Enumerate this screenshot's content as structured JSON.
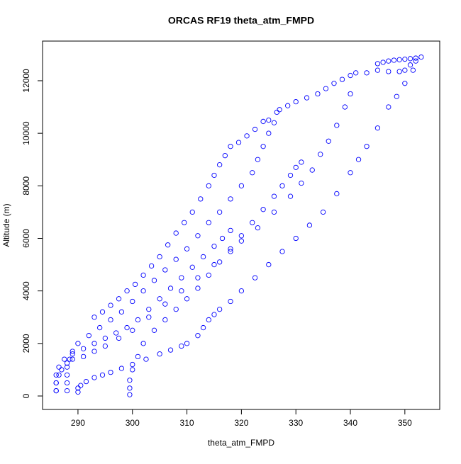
{
  "chart_data": {
    "type": "scatter",
    "title": "ORCAS RF19 theta_atm_FMPD",
    "x_label": "theta_atm_FMPD",
    "y_label": "Altitude (m)",
    "xlim": [
      283.5,
      356.4
    ],
    "ylim": [
      -512,
      13509
    ],
    "xticks": [
      290,
      300,
      310,
      320,
      330,
      340,
      350
    ],
    "yticks": [
      0,
      2000,
      4000,
      6000,
      8000,
      10000,
      12000
    ],
    "series": [
      {
        "color": "#0000ff",
        "x": [
          293,
          294.5,
          296,
          297.5,
          299,
          300.5,
          302,
          303.5,
          305,
          306.5,
          308,
          309.5,
          311,
          312.5,
          314,
          315,
          316,
          317,
          318,
          319.5,
          321,
          322.5,
          324,
          325,
          327,
          328.5,
          330,
          332,
          334,
          335.5,
          337,
          338.5,
          340,
          343,
          345,
          347,
          349,
          350,
          351,
          352,
          353,
          326.5,
          326,
          325,
          324,
          323,
          322,
          320,
          318,
          316,
          314,
          312,
          310,
          308,
          306,
          304,
          302,
          300,
          298,
          296,
          294,
          292,
          290,
          289,
          288.5,
          288,
          288,
          288,
          288,
          351.5,
          350,
          348.5,
          347,
          345,
          343,
          341.5,
          340,
          337.5,
          335,
          332.5,
          330,
          327.5,
          325,
          322.5,
          320,
          318,
          316,
          315,
          314,
          313,
          312,
          310,
          309,
          307,
          305,
          302.5,
          300,
          298,
          296,
          294.5,
          293,
          291.5,
          290.5,
          290,
          290,
          341,
          340,
          339,
          337.5,
          336,
          334.5,
          333,
          331,
          329,
          326,
          323,
          320,
          318,
          315,
          312,
          309,
          306,
          303,
          300,
          297.5,
          295,
          293,
          291,
          289,
          288,
          287,
          286.5,
          286,
          286,
          331,
          330,
          329,
          327.5,
          326,
          324,
          322,
          320,
          318,
          316,
          314,
          312,
          310,
          308,
          306,
          304,
          302,
          301,
          300,
          299.5,
          299.5,
          299.5,
          318,
          316.5,
          315,
          313,
          311,
          309,
          307,
          305,
          303,
          301,
          299,
          297,
          295,
          293,
          291,
          289,
          287.5,
          286.5,
          286,
          286,
          286,
          345,
          346,
          347,
          348,
          349,
          350,
          351,
          352
        ],
        "values": [
          3000,
          3200,
          3450,
          3700,
          4000,
          4250,
          4600,
          4950,
          5300,
          5750,
          6200,
          6600,
          7000,
          7500,
          8000,
          8400,
          8800,
          9150,
          9500,
          9650,
          9900,
          10150,
          10450,
          10500,
          10900,
          11050,
          11200,
          11350,
          11500,
          11700,
          11900,
          12050,
          12200,
          12300,
          12400,
          12350,
          12350,
          12400,
          12600,
          12750,
          12900,
          10800,
          10400,
          10000,
          9500,
          9000,
          8500,
          8000,
          7500,
          7000,
          6600,
          6100,
          5600,
          5200,
          4800,
          4400,
          4000,
          3600,
          3200,
          2900,
          2600,
          2300,
          2000,
          1700,
          1400,
          1100,
          800,
          500,
          200,
          12400,
          11900,
          11400,
          11000,
          10200,
          9500,
          9000,
          8500,
          7700,
          7000,
          6500,
          6000,
          5500,
          5000,
          4500,
          4000,
          3600,
          3300,
          3100,
          2900,
          2600,
          2300,
          2000,
          1900,
          1750,
          1600,
          1400,
          1200,
          1050,
          900,
          800,
          700,
          550,
          400,
          300,
          150,
          12300,
          11500,
          11000,
          10300,
          9700,
          9200,
          8600,
          8100,
          7600,
          7000,
          6400,
          5900,
          5500,
          5000,
          4500,
          4000,
          3500,
          3000,
          2500,
          2200,
          1900,
          1700,
          1500,
          1400,
          1250,
          1000,
          800,
          500,
          200,
          8900,
          8700,
          8400,
          8000,
          7600,
          7100,
          6600,
          6100,
          5600,
          5100,
          4600,
          4100,
          3700,
          3300,
          2900,
          2500,
          2000,
          1500,
          1000,
          600,
          300,
          50,
          6300,
          6000,
          5700,
          5300,
          4900,
          4500,
          4100,
          3700,
          3300,
          2900,
          2600,
          2400,
          2200,
          2000,
          1800,
          1600,
          1400,
          1100,
          800,
          500,
          200,
          12650,
          12700,
          12750,
          12780,
          12800,
          12820,
          12840,
          12860
        ]
      }
    ]
  }
}
